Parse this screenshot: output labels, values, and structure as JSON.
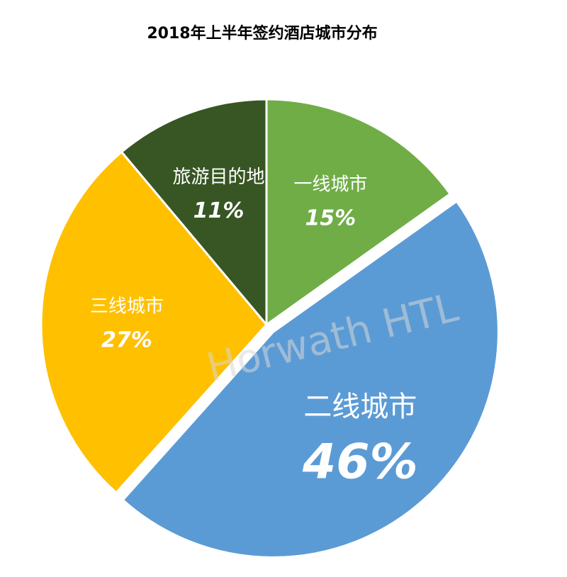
{
  "chart_data": {
    "type": "pie",
    "title": "2018年上半年签约酒店城市分布",
    "watermark": "Horwath HTL",
    "categories": [
      "一线城市",
      "二线城市",
      "三线城市",
      "旅游目的地"
    ],
    "values": [
      15,
      46,
      27,
      11
    ],
    "value_labels": [
      "15%",
      "46%",
      "27%",
      "11%"
    ],
    "colors": [
      "#70ad47",
      "#5b9bd5",
      "#ffc000",
      "#375623"
    ]
  }
}
